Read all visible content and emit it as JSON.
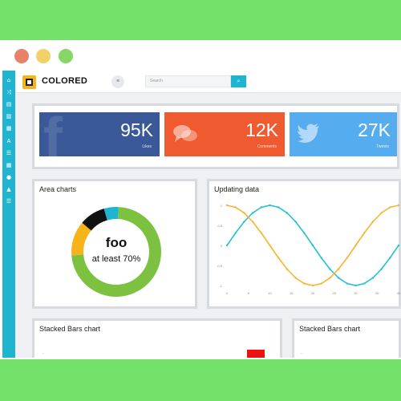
{
  "colors": {
    "page_bg": "#72e26a",
    "accent": "#1fb5d0",
    "facebook": "#3b5998",
    "comments": "#f05a30",
    "twitter": "#55acee",
    "donut_green": "#7cc240",
    "donut_yellow": "#f6b41a",
    "donut_black": "#111111",
    "donut_cyan": "#1fb5d0",
    "line_cyan": "#22c3cf",
    "line_orange": "#f7b52d",
    "bar_red": "#ee1111"
  },
  "window_dots": [
    "#e8816a",
    "#f2d166",
    "#86d766"
  ],
  "sidebar_icons": [
    "home-icon",
    "share-icon",
    "document-icon",
    "book-icon",
    "chart-icon",
    "text-icon",
    "list-icon",
    "table-icon",
    "pin-icon",
    "warning-icon",
    "menu-icon"
  ],
  "header": {
    "brand": "COLORED",
    "menu_toggle": "≡",
    "search_placeholder": "Search"
  },
  "stats": [
    {
      "value": "95K",
      "label": "Likes",
      "icon": "facebook-icon"
    },
    {
      "value": "12K",
      "label": "Comments",
      "icon": "comments-icon"
    },
    {
      "value": "27K",
      "label": "Tweets",
      "icon": "twitter-icon"
    }
  ],
  "area_chart": {
    "title": "Area charts",
    "center_title": "foo",
    "center_sub": "at least 70%"
  },
  "updating_chart": {
    "title": "Updating data"
  },
  "stacked_left": {
    "title": "Stacked Bars chart"
  },
  "stacked_right": {
    "title": "Stacked Bars chart"
  },
  "chart_data": [
    {
      "type": "pie",
      "title": "Area charts",
      "series": [
        {
          "name": "",
          "values": [
            70,
            12,
            9,
            5
          ]
        }
      ],
      "slice_colors": [
        "#7cc240",
        "#f6b41a",
        "#111111",
        "#1fb5d0"
      ]
    },
    {
      "type": "line",
      "title": "Updating data",
      "x": [
        0,
        2,
        4,
        6,
        8,
        10,
        12,
        14,
        16,
        18,
        20,
        22,
        24,
        26,
        28,
        30,
        32,
        34,
        36,
        38,
        40
      ],
      "ylim": [
        -1,
        1
      ],
      "ytick_labels": [
        "1",
        "0.5",
        "0",
        "-0.5",
        "-1"
      ],
      "xtick_labels": [
        "0",
        "5",
        "10",
        "15",
        "20",
        "25",
        "30",
        "35",
        "40"
      ],
      "series": [
        {
          "values": [
            0.0,
            0.31,
            0.59,
            0.81,
            0.95,
            1.0,
            0.95,
            0.81,
            0.59,
            0.31,
            0.0,
            -0.31,
            -0.59,
            -0.81,
            -0.95,
            -1.0,
            -0.95,
            -0.81,
            -0.59,
            -0.31,
            0.0
          ]
        },
        {
          "values": [
            1.0,
            0.95,
            0.81,
            0.59,
            0.31,
            0.0,
            -0.31,
            -0.59,
            -0.81,
            -0.95,
            -1.0,
            -0.95,
            -0.81,
            -0.59,
            -0.31,
            0.0,
            0.31,
            0.59,
            0.81,
            0.95,
            1.0
          ]
        }
      ],
      "series_colors": [
        "#22c3cf",
        "#f7b52d"
      ]
    }
  ]
}
